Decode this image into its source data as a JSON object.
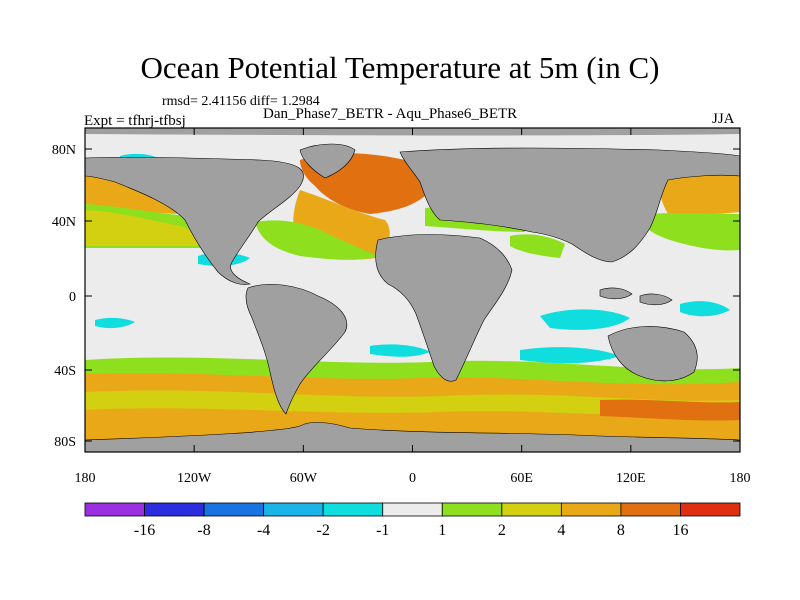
{
  "title": "Ocean Potential Temperature at 5m (in C)",
  "stats_text": "rmsd= 2.41156 diff= 1.2984",
  "left_label": "Expt = tfhrj-tfbsj",
  "subtitle": "Dan_Phase7_BETR - Aqu_Phase6_BETR",
  "season": "JJA",
  "map": {
    "lon_ticks": [
      "180",
      "120W",
      "60W",
      "0",
      "60E",
      "120E",
      "180"
    ],
    "lat_ticks": [
      "80N",
      "40N",
      "0",
      "40S",
      "80S"
    ],
    "land_color": "#a0a0a0",
    "ocean_background": "#e8e8e8"
  },
  "colorbar": {
    "labels": [
      "-16",
      "-8",
      "-4",
      "-2",
      "-1",
      "1",
      "2",
      "4",
      "8",
      "16"
    ],
    "colors": [
      "#9b30e0",
      "#2d2de0",
      "#1874e0",
      "#1ab4e8",
      "#10dede",
      "#ececec",
      "#8ee01e",
      "#d2d010",
      "#e8a818",
      "#e07010",
      "#e02e10"
    ]
  }
}
